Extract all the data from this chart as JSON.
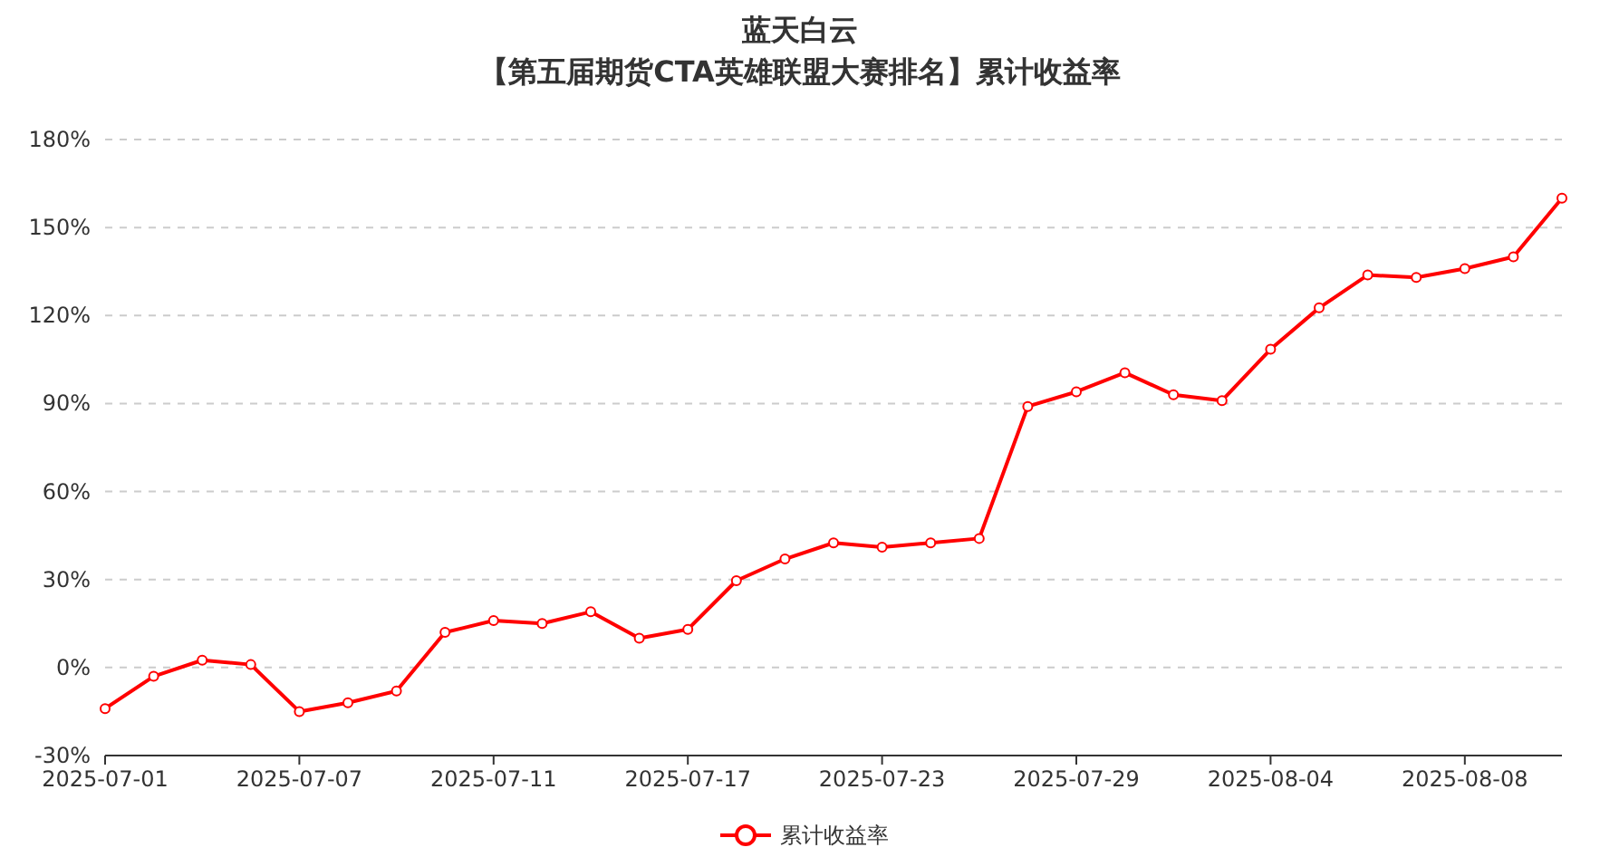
{
  "chart_data": {
    "type": "line",
    "title": "蓝天白云",
    "subtitle": "【第五届期货CTA英雄联盟大赛排名】累计收益率",
    "categories": [
      "2025-07-01",
      null,
      null,
      null,
      "2025-07-07",
      null,
      null,
      null,
      "2025-07-11",
      null,
      null,
      null,
      "2025-07-17",
      null,
      null,
      null,
      "2025-07-23",
      null,
      null,
      null,
      "2025-07-29",
      null,
      null,
      null,
      "2025-08-04",
      null,
      null,
      null,
      "2025-08-08",
      null,
      null
    ],
    "series": [
      {
        "name": "累计收益率",
        "color": "#ff0000",
        "values": [
          -14,
          -3,
          2.5,
          1,
          -15,
          -12,
          -8,
          12,
          16,
          15,
          19,
          10,
          13,
          29.6,
          37,
          42.5,
          41,
          42.5,
          44,
          89,
          94,
          100.5,
          93,
          91,
          108.5,
          122.6,
          133.8,
          133,
          136,
          140,
          160
        ]
      }
    ],
    "ylim": [
      -30,
      180
    ],
    "yticks": [
      {
        "value": -30,
        "label": "-30%"
      },
      {
        "value": 0,
        "label": "0%"
      },
      {
        "value": 30,
        "label": "30%"
      },
      {
        "value": 60,
        "label": "60%"
      },
      {
        "value": 90,
        "label": "90%"
      },
      {
        "value": 120,
        "label": "120%"
      },
      {
        "value": 150,
        "label": "150%"
      },
      {
        "value": 180,
        "label": "180%"
      }
    ],
    "grid": "y",
    "legend": "bottom",
    "marker": "circle",
    "line_style": "solid"
  }
}
